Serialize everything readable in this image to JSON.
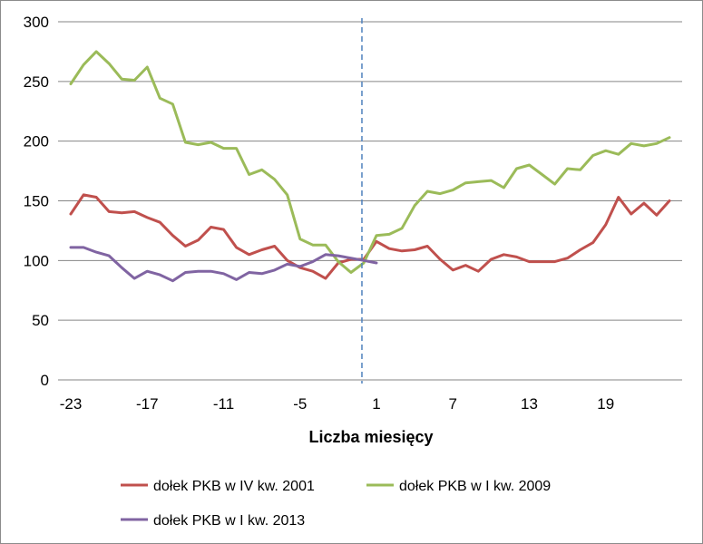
{
  "chart_data": {
    "type": "line",
    "title": "",
    "xlabel": "Liczba miesięcy",
    "ylabel": "",
    "ylim": [
      0,
      300
    ],
    "yticks": [
      0,
      50,
      100,
      150,
      200,
      250,
      300
    ],
    "xrange": [
      -24,
      25
    ],
    "xticks": [
      -23,
      -17,
      -11,
      -5,
      1,
      7,
      13,
      19
    ],
    "xtick_labels": [
      "-23",
      "-17",
      "-11",
      "-5",
      "1",
      "7",
      "13",
      "19"
    ],
    "reference_line": {
      "x": 0,
      "style": "dashed"
    },
    "grid": "horizontal",
    "legend_position": "bottom",
    "series": [
      {
        "name": "dołek PKB w IV kw. 2001",
        "color": "#c0504d",
        "x": [
          -23,
          -22,
          -21,
          -20,
          -19,
          -18,
          -17,
          -16,
          -15,
          -14,
          -13,
          -12,
          -11,
          -10,
          -9,
          -8,
          -7,
          -6,
          -5,
          -4,
          -3,
          -2,
          -1,
          0,
          1,
          2,
          3,
          4,
          5,
          6,
          7,
          8,
          9,
          10,
          11,
          12,
          13,
          14,
          15,
          16,
          17,
          18,
          19,
          20,
          21,
          22,
          23,
          24
        ],
        "values": [
          139,
          155,
          153,
          141,
          140,
          141,
          136,
          132,
          121,
          112,
          117,
          128,
          126,
          111,
          105,
          109,
          112,
          100,
          94,
          91,
          85,
          98,
          101,
          101,
          116,
          110,
          108,
          109,
          112,
          101,
          92,
          96,
          91,
          101,
          105,
          103,
          99,
          99,
          99,
          102,
          109,
          115,
          130,
          153,
          139,
          148,
          138,
          150
        ]
      },
      {
        "name": "dołek PKB w I kw. 2009",
        "color": "#9bbb59",
        "x": [
          -23,
          -22,
          -21,
          -20,
          -19,
          -18,
          -17,
          -16,
          -15,
          -14,
          -13,
          -12,
          -11,
          -10,
          -9,
          -8,
          -7,
          -6,
          -5,
          -4,
          -3,
          -2,
          -1,
          0,
          1,
          2,
          3,
          4,
          5,
          6,
          7,
          8,
          9,
          10,
          11,
          12,
          13,
          14,
          15,
          16,
          17,
          18,
          19,
          20,
          21,
          22,
          23,
          24
        ],
        "values": [
          248,
          264,
          275,
          265,
          252,
          251,
          262,
          236,
          231,
          199,
          197,
          199,
          194,
          194,
          172,
          176,
          168,
          155,
          118,
          113,
          113,
          99,
          90,
          98,
          121,
          122,
          127,
          146,
          158,
          156,
          159,
          165,
          166,
          167,
          161,
          177,
          180,
          172,
          164,
          177,
          176,
          188,
          192,
          189,
          198,
          196,
          198,
          203
        ]
      },
      {
        "name": "dołek PKB w I kw. 2013",
        "color": "#8064a2",
        "x": [
          -23,
          -22,
          -21,
          -20,
          -19,
          -18,
          -17,
          -16,
          -15,
          -14,
          -13,
          -12,
          -11,
          -10,
          -9,
          -8,
          -7,
          -6,
          -5,
          -4,
          -3,
          -2,
          -1,
          0,
          1
        ],
        "values": [
          111,
          111,
          107,
          104,
          94,
          85,
          91,
          88,
          83,
          90,
          91,
          91,
          89,
          84,
          90,
          89,
          92,
          97,
          95,
          99,
          105,
          104,
          102,
          100,
          98
        ]
      }
    ]
  }
}
